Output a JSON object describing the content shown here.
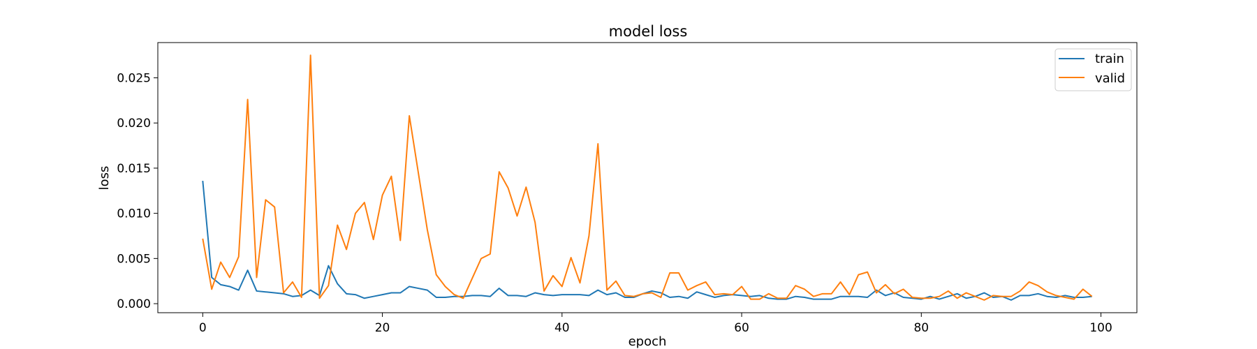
{
  "chart_data": {
    "type": "line",
    "title": "model loss",
    "xlabel": "epoch",
    "ylabel": "loss",
    "xlim": [
      -5,
      104
    ],
    "ylim": [
      -0.001,
      0.0289
    ],
    "xticks": [
      0,
      20,
      40,
      60,
      80,
      100
    ],
    "xtick_labels": [
      "0",
      "20",
      "40",
      "60",
      "80",
      "100"
    ],
    "yticks": [
      0.0,
      0.005,
      0.01,
      0.015,
      0.02,
      0.025
    ],
    "ytick_labels": [
      "0.000",
      "0.005",
      "0.010",
      "0.015",
      "0.020",
      "0.025"
    ],
    "grid": false,
    "legend_position": "top-right",
    "x": [
      0,
      1,
      2,
      3,
      4,
      5,
      6,
      7,
      8,
      9,
      10,
      11,
      12,
      13,
      14,
      15,
      16,
      17,
      18,
      19,
      20,
      21,
      22,
      23,
      24,
      25,
      26,
      27,
      28,
      29,
      30,
      31,
      32,
      33,
      34,
      35,
      36,
      37,
      38,
      39,
      40,
      41,
      42,
      43,
      44,
      45,
      46,
      47,
      48,
      49,
      50,
      51,
      52,
      53,
      54,
      55,
      56,
      57,
      58,
      59,
      60,
      61,
      62,
      63,
      64,
      65,
      66,
      67,
      68,
      69,
      70,
      71,
      72,
      73,
      74,
      75,
      76,
      77,
      78,
      79,
      80,
      81,
      82,
      83,
      84,
      85,
      86,
      87,
      88,
      89,
      90,
      91,
      92,
      93,
      94,
      95,
      96,
      97,
      98,
      99
    ],
    "series": [
      {
        "name": "train",
        "color": "#1f77b4",
        "values": [
          0.0136,
          0.0029,
          0.0021,
          0.0019,
          0.0015,
          0.0037,
          0.0014,
          0.0013,
          0.0012,
          0.0011,
          0.0008,
          0.0009,
          0.0015,
          0.0009,
          0.0042,
          0.0022,
          0.0011,
          0.001,
          0.0006,
          0.0008,
          0.001,
          0.0012,
          0.0012,
          0.0019,
          0.0017,
          0.0015,
          0.0007,
          0.0007,
          0.0008,
          0.0008,
          0.0009,
          0.0009,
          0.0008,
          0.0017,
          0.0009,
          0.0009,
          0.0008,
          0.0012,
          0.001,
          0.0009,
          0.001,
          0.001,
          0.001,
          0.0009,
          0.0015,
          0.001,
          0.0012,
          0.0007,
          0.0007,
          0.0011,
          0.0014,
          0.0012,
          0.0007,
          0.0008,
          0.0006,
          0.0013,
          0.001,
          0.0007,
          0.0009,
          0.001,
          0.0009,
          0.0008,
          0.0009,
          0.0006,
          0.0005,
          0.0005,
          0.0008,
          0.0007,
          0.0005,
          0.0005,
          0.0005,
          0.0008,
          0.0008,
          0.0008,
          0.0007,
          0.0015,
          0.0009,
          0.0012,
          0.0007,
          0.0006,
          0.0005,
          0.0008,
          0.0005,
          0.0008,
          0.0011,
          0.0006,
          0.0008,
          0.0012,
          0.0007,
          0.0008,
          0.0004,
          0.0009,
          0.0009,
          0.0011,
          0.0008,
          0.0007,
          0.0009,
          0.0007,
          0.0007,
          0.0008
        ]
      },
      {
        "name": "valid",
        "color": "#ff7f0e",
        "values": [
          0.0072,
          0.0016,
          0.0046,
          0.0029,
          0.0052,
          0.0226,
          0.0029,
          0.0115,
          0.0107,
          0.0012,
          0.0024,
          0.0007,
          0.0275,
          0.0006,
          0.002,
          0.0087,
          0.006,
          0.01,
          0.0112,
          0.0071,
          0.012,
          0.0141,
          0.007,
          0.0208,
          0.0145,
          0.0082,
          0.0032,
          0.0019,
          0.001,
          0.0006,
          0.0028,
          0.005,
          0.0055,
          0.0146,
          0.0128,
          0.0097,
          0.0129,
          0.009,
          0.0014,
          0.0031,
          0.0019,
          0.0051,
          0.0023,
          0.0075,
          0.0177,
          0.0015,
          0.0025,
          0.0009,
          0.0008,
          0.0011,
          0.0012,
          0.0007,
          0.0034,
          0.0034,
          0.0015,
          0.002,
          0.0024,
          0.001,
          0.0011,
          0.001,
          0.0019,
          0.0005,
          0.0005,
          0.0011,
          0.0006,
          0.0006,
          0.002,
          0.0016,
          0.0008,
          0.0011,
          0.0011,
          0.0024,
          0.001,
          0.0032,
          0.0035,
          0.0012,
          0.0021,
          0.0011,
          0.0016,
          0.0007,
          0.0006,
          0.0006,
          0.0008,
          0.0014,
          0.0006,
          0.0012,
          0.0008,
          0.0004,
          0.0009,
          0.0008,
          0.0008,
          0.0014,
          0.0024,
          0.002,
          0.0013,
          0.0009,
          0.0007,
          0.0005,
          0.0016,
          0.0008
        ]
      }
    ]
  }
}
